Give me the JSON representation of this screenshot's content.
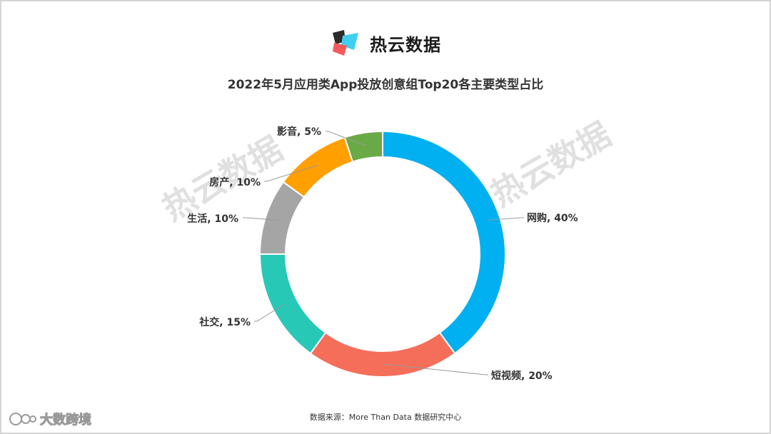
{
  "brand": {
    "name": "热云数据",
    "logo_icon": "reyun-logo-icon"
  },
  "source_text": "数据来源：More Than Data 数据研究中心",
  "watermark": {
    "text": "热云数据"
  },
  "corner_watermark": {
    "text": "大数跨境",
    "icon": "dashujuajing-logo-icon"
  },
  "chart_data": {
    "type": "pie",
    "style": "donut",
    "title": "2022年5月应用类App投放创意组Top20各主要类型占比",
    "unit": "%",
    "slices": [
      {
        "name": "网购",
        "value": 40,
        "label": "网购, 40%",
        "color": "#00B0F0"
      },
      {
        "name": "短视频",
        "value": 20,
        "label": "短视频, 20%",
        "color": "#F46E5A"
      },
      {
        "name": "社交",
        "value": 15,
        "label": "社交, 15%",
        "color": "#27C8B6"
      },
      {
        "name": "生活",
        "value": 10,
        "label": "生活, 10%",
        "color": "#A5A5A5"
      },
      {
        "name": "房产",
        "value": 10,
        "label": "房产, 10%",
        "color": "#FF9F00"
      },
      {
        "name": "影音",
        "value": 5,
        "label": "影音, 5%",
        "color": "#6AAA46"
      }
    ],
    "legend": "none"
  }
}
